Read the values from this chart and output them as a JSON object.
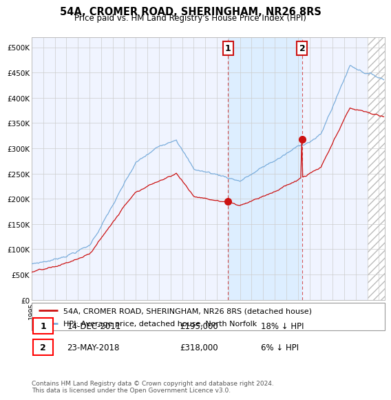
{
  "title": "54A, CROMER ROAD, SHERINGHAM, NR26 8RS",
  "subtitle": "Price paid vs. HM Land Registry's House Price Index (HPI)",
  "ylabel_ticks": [
    "£0",
    "£50K",
    "£100K",
    "£150K",
    "£200K",
    "£250K",
    "£300K",
    "£350K",
    "£400K",
    "£450K",
    "£500K"
  ],
  "ytick_values": [
    0,
    50000,
    100000,
    150000,
    200000,
    250000,
    300000,
    350000,
    400000,
    450000,
    500000
  ],
  "ylim": [
    0,
    520000
  ],
  "xlim_start": 1995.0,
  "xlim_end": 2025.5,
  "hpi_color": "#7aaddc",
  "price_color": "#cc1111",
  "bg_color": "#f0f4ff",
  "shade_color": "#ddeeff",
  "hatch_color": "#cccccc",
  "grid_color": "#cccccc",
  "sale1_x": 2011.958,
  "sale1_y": 195000,
  "sale2_x": 2018.37,
  "sale2_y": 318000,
  "legend_line1": "54A, CROMER ROAD, SHERINGHAM, NR26 8RS (detached house)",
  "legend_line2": "HPI: Average price, detached house, North Norfolk",
  "footer": "Contains HM Land Registry data © Crown copyright and database right 2024.\nThis data is licensed under the Open Government Licence v3.0.",
  "table_row1": [
    "1",
    "14-DEC-2011",
    "£195,000",
    "18% ↓ HPI"
  ],
  "table_row2": [
    "2",
    "23-MAY-2018",
    "£318,000",
    "6% ↓ HPI"
  ]
}
